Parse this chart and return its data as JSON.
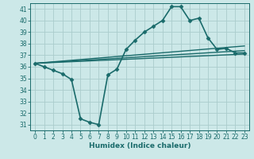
{
  "xlabel": "Humidex (Indice chaleur)",
  "xlim": [
    -0.5,
    23.5
  ],
  "ylim": [
    30.5,
    41.5
  ],
  "yticks": [
    31,
    32,
    33,
    34,
    35,
    36,
    37,
    38,
    39,
    40,
    41
  ],
  "xticks": [
    0,
    1,
    2,
    3,
    4,
    5,
    6,
    7,
    8,
    9,
    10,
    11,
    12,
    13,
    14,
    15,
    16,
    17,
    18,
    19,
    20,
    21,
    22,
    23
  ],
  "background_color": "#cce8e8",
  "grid_color": "#aacccc",
  "line_color": "#1a6b6b",
  "lines": [
    {
      "x": [
        0,
        1,
        2,
        3,
        4,
        5,
        6,
        7,
        8,
        9,
        10,
        11,
        12,
        13,
        14,
        15,
        16,
        17,
        18,
        19,
        20,
        21,
        22,
        23
      ],
      "y": [
        36.3,
        36.0,
        35.7,
        35.4,
        34.9,
        31.5,
        31.2,
        31.0,
        35.3,
        35.8,
        37.5,
        38.3,
        39.0,
        39.5,
        40.0,
        41.2,
        41.2,
        40.0,
        40.2,
        38.5,
        37.5,
        37.6,
        37.2,
        37.2
      ],
      "marker": "D",
      "markersize": 2.5,
      "linewidth": 1.2,
      "zorder": 4
    },
    {
      "x": [
        0,
        23
      ],
      "y": [
        36.3,
        37.8
      ],
      "marker": null,
      "linewidth": 1.0,
      "zorder": 2
    },
    {
      "x": [
        0,
        23
      ],
      "y": [
        36.3,
        37.4
      ],
      "marker": null,
      "linewidth": 1.0,
      "zorder": 2
    },
    {
      "x": [
        0,
        23
      ],
      "y": [
        36.3,
        37.1
      ],
      "marker": null,
      "linewidth": 1.0,
      "zorder": 2
    }
  ]
}
